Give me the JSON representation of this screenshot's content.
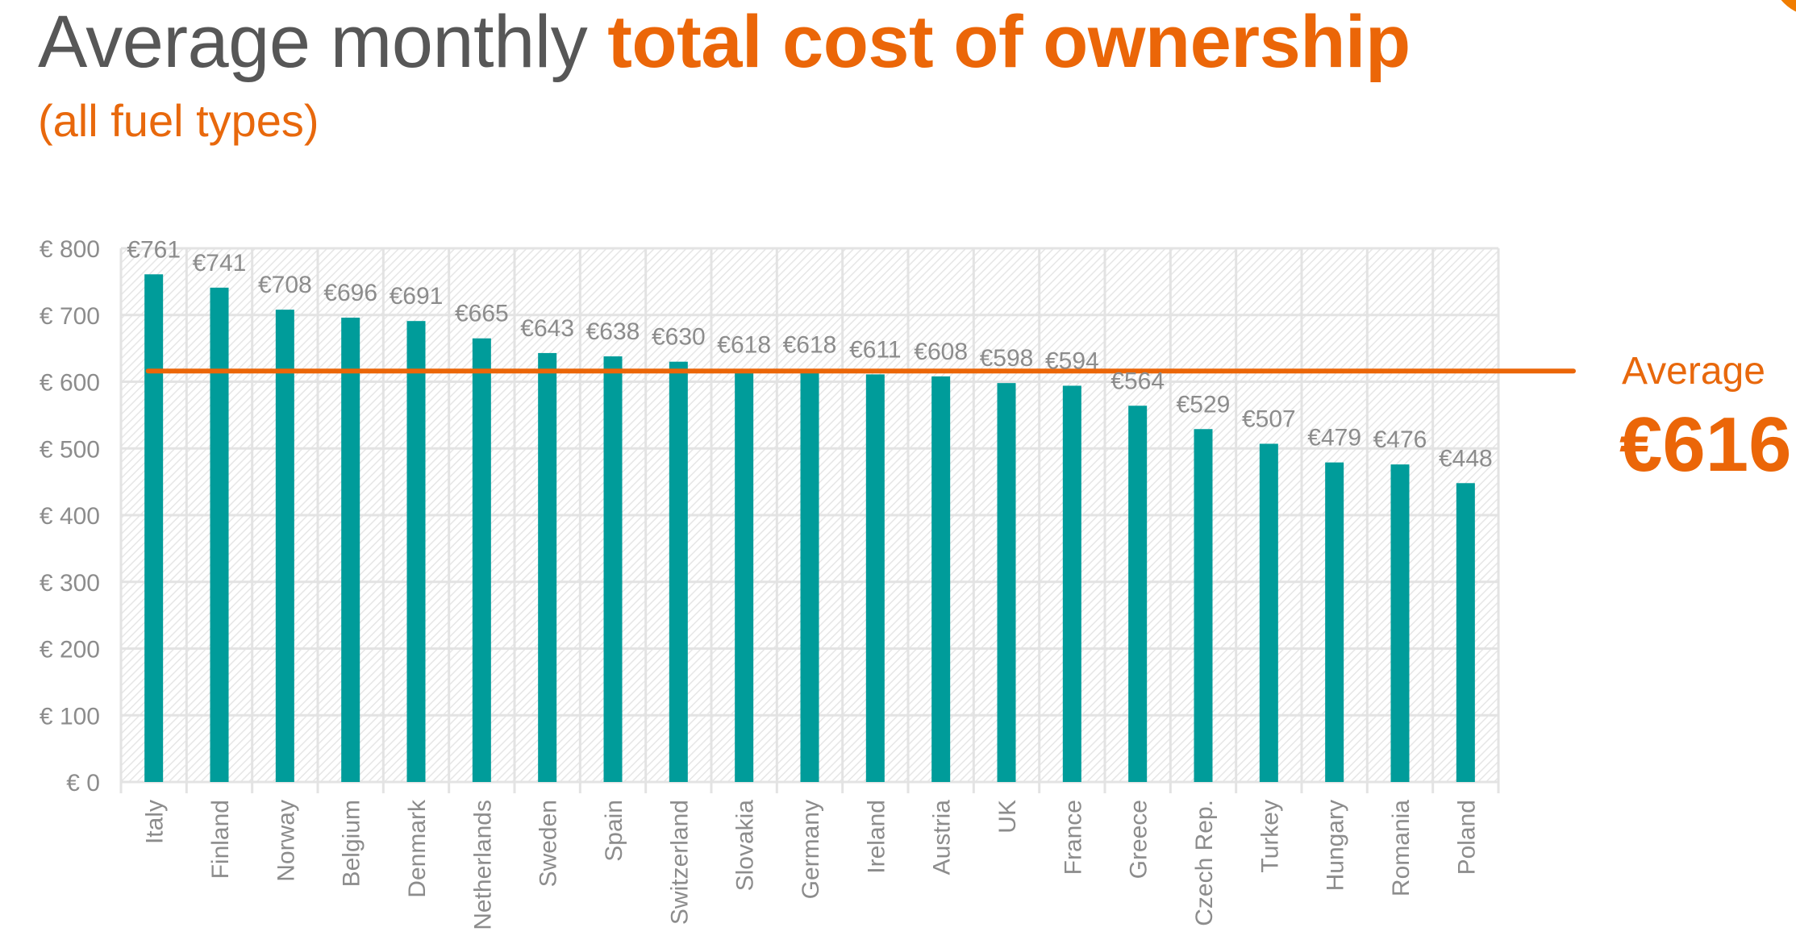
{
  "header": {
    "title_plain": "Average monthly ",
    "title_highlight": "total cost of ownership",
    "subtitle": "(all fuel types)"
  },
  "average": {
    "label": "Average",
    "value_text": "€616",
    "value": 616
  },
  "colors": {
    "bar": "#009C9A",
    "average_line": "#EB6608",
    "accent": "#EB6608",
    "title_grey": "#575757",
    "axis_text": "#8C8C8C",
    "grid": "#E3E3E3"
  },
  "chart_data": {
    "type": "bar",
    "title": "Average monthly total cost of ownership (all fuel types)",
    "xlabel": "",
    "ylabel": "",
    "ylim": [
      0,
      800
    ],
    "yticks": [
      0,
      100,
      200,
      300,
      400,
      500,
      600,
      700,
      800
    ],
    "ytick_labels": [
      "€ 0",
      "€ 100",
      "€ 200",
      "€ 300",
      "€ 400",
      "€ 500",
      "€ 600",
      "€ 700",
      "€ 800"
    ],
    "grid": true,
    "legend": "none",
    "categories": [
      "Italy",
      "Finland",
      "Norway",
      "Belgium",
      "Denmark",
      "Netherlands",
      "Sweden",
      "Spain",
      "Switzerland",
      "Slovakia",
      "Germany",
      "Ireland",
      "Austria",
      "UK",
      "France",
      "Greece",
      "Czech Rep.",
      "Turkey",
      "Hungary",
      "Romania",
      "Poland"
    ],
    "values": [
      761,
      741,
      708,
      696,
      691,
      665,
      643,
      638,
      630,
      618,
      618,
      611,
      608,
      598,
      594,
      564,
      529,
      507,
      479,
      476,
      448
    ],
    "data_labels": [
      "€761",
      "€741",
      "€708",
      "€696",
      "€691",
      "€665",
      "€643",
      "€638",
      "€630",
      "€618",
      "€618",
      "€611",
      "€608",
      "€598",
      "€594",
      "€564",
      "€529",
      "€507",
      "€479",
      "€476",
      "€448"
    ],
    "reference_line": {
      "name": "Average",
      "value": 616,
      "label": "€616"
    }
  }
}
